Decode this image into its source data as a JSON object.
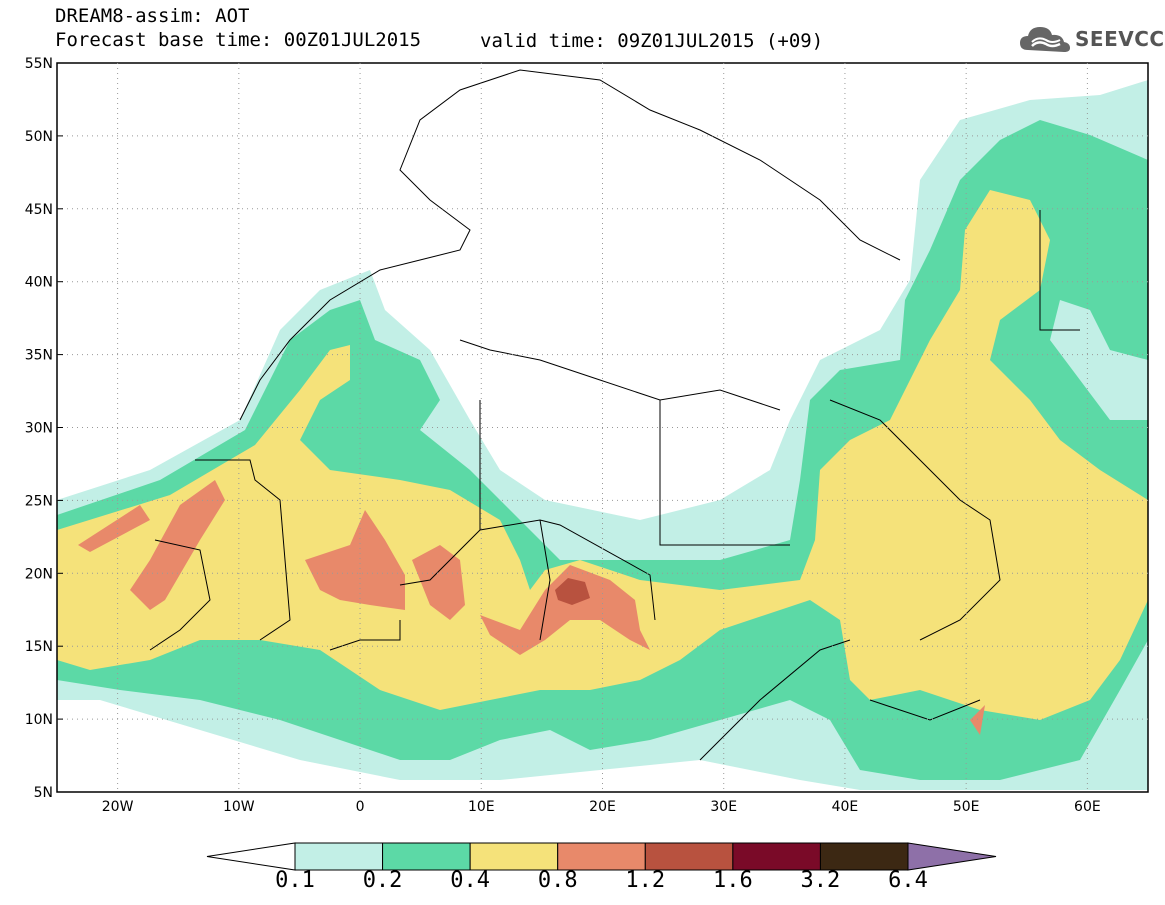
{
  "header": {
    "title_line1": "DREAM8-assim: AOT",
    "title_line2": "Forecast base time: 00Z01JUL2015",
    "valid_time": "valid time: 09Z01JUL2015 (+09)",
    "logo_text": "SEEVCCC"
  },
  "map": {
    "lon_range": [
      -25,
      65
    ],
    "lat_range": [
      5,
      55
    ],
    "x_ticks": [
      "20W",
      "10W",
      "0",
      "10E",
      "20E",
      "30E",
      "40E",
      "50E",
      "60E"
    ],
    "y_ticks": [
      "55N",
      "50N",
      "45N",
      "40N",
      "35N",
      "30N",
      "25N",
      "20N",
      "15N",
      "10N",
      "5N"
    ]
  },
  "colorbar": {
    "labels": [
      "0.1",
      "0.2",
      "0.4",
      "0.8",
      "1.2",
      "1.6",
      "3.2",
      "6.4"
    ],
    "colors": [
      "#ffffff",
      "#c2efe6",
      "#5cd9a6",
      "#f5e27a",
      "#e8896a",
      "#b8523f",
      "#7a0a28",
      "#3c2813",
      "#8e70a8"
    ]
  }
}
